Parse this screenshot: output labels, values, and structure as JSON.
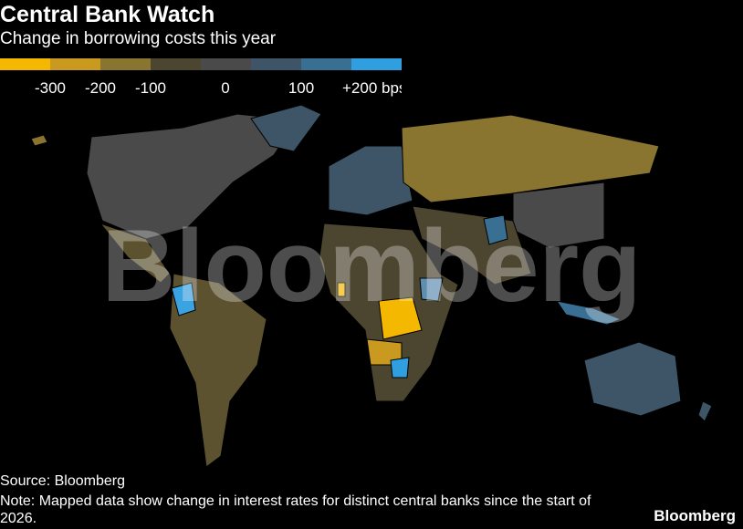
{
  "header": {
    "title": "Central Bank Watch",
    "subtitle": "Change in borrowing costs this year"
  },
  "legend": {
    "colors": [
      "#f5b800",
      "#c99a1f",
      "#8a7530",
      "#4c4630",
      "#4a4a4a",
      "#3d5566",
      "#3a6f94",
      "#2f9fe0"
    ],
    "ticks": [
      -300,
      -200,
      -100,
      0,
      100,
      {
        "value": 200,
        "label": "+200 bps"
      }
    ]
  },
  "watermark": "Bloomberg",
  "footer": {
    "source": "Source: Bloomberg",
    "note": "Note: Mapped data show change in interest rates for distinct central banks since the start of 2026.",
    "logo": "Bloomberg"
  }
}
